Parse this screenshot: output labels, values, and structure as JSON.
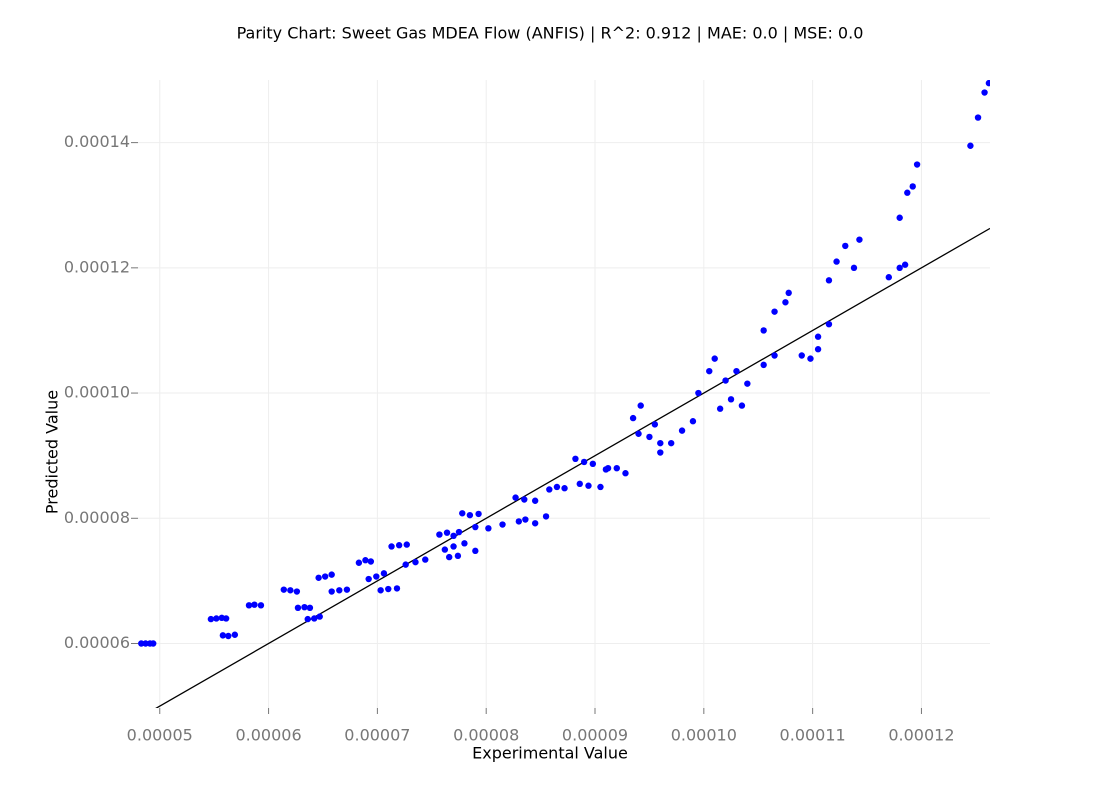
{
  "chart_data": {
    "type": "scatter",
    "title": "Parity Chart: Sweet Gas MDEA Flow (ANFIS) | R^2: 0.912 | MAE: 0.0 | MSE: 0.0",
    "xlabel": "Experimental Value",
    "ylabel": "Predicted Value",
    "xlim": [
      4.8e-05,
      0.0001263
    ],
    "ylim": [
      4.97e-05,
      0.00015
    ],
    "xticks": [
      5e-05,
      6e-05,
      7e-05,
      8e-05,
      9e-05,
      {
        "value": 0.0001,
        "label": "0.00010"
      },
      0.00011,
      0.00012
    ],
    "yticks": [
      6e-05,
      8e-05,
      {
        "value": 0.0001,
        "label": "0.00010"
      },
      0.00012,
      0.00014
    ],
    "grid": true,
    "parity_line": true,
    "series": [
      {
        "color": "#0000ff",
        "x": [
          4.83e-05,
          4.87e-05,
          4.91e-05,
          4.94e-05,
          5.47e-05,
          5.52e-05,
          5.57e-05,
          5.61e-05,
          5.58e-05,
          5.63e-05,
          5.69e-05,
          5.82e-05,
          5.87e-05,
          5.93e-05,
          6.14e-05,
          6.2e-05,
          6.26e-05,
          6.27e-05,
          6.33e-05,
          6.38e-05,
          6.36e-05,
          6.42e-05,
          6.47e-05,
          6.46e-05,
          6.52e-05,
          6.58e-05,
          6.58e-05,
          6.65e-05,
          6.72e-05,
          6.83e-05,
          6.89e-05,
          6.94e-05,
          6.92e-05,
          6.99e-05,
          7.06e-05,
          7.03e-05,
          7.1e-05,
          7.18e-05,
          7.13e-05,
          7.2e-05,
          7.27e-05,
          7.26e-05,
          7.35e-05,
          7.44e-05,
          7.57e-05,
          7.64e-05,
          7.7e-05,
          7.75e-05,
          7.62e-05,
          7.7e-05,
          7.8e-05,
          7.9e-05,
          7.66e-05,
          7.74e-05,
          7.78e-05,
          7.85e-05,
          7.93e-05,
          7.9e-05,
          8.02e-05,
          8.15e-05,
          8.3e-05,
          8.27e-05,
          8.35e-05,
          8.45e-05,
          8.36e-05,
          8.45e-05,
          8.55e-05,
          8.58e-05,
          8.65e-05,
          8.72e-05,
          8.82e-05,
          8.9e-05,
          8.98e-05,
          9.05e-05,
          9.12e-05,
          8.86e-05,
          8.94e-05,
          9.1e-05,
          9.2e-05,
          9.28e-05,
          9.35e-05,
          9.42e-05,
          9.4e-05,
          9.5e-05,
          9.55e-05,
          9.6e-05,
          9.6e-05,
          9.7e-05,
          9.8e-05,
          9.9e-05,
          9.95e-05,
          0.0001005,
          0.000101,
          0.0001015,
          0.0001025,
          0.0001035,
          0.000102,
          0.000103,
          0.000104,
          0.0001055,
          0.0001065,
          0.0001055,
          0.0001065,
          0.0001075,
          0.0001078,
          0.000109,
          0.0001098,
          0.0001105,
          0.0001105,
          0.0001115,
          0.0001115,
          0.0001122,
          0.000113,
          0.0001138,
          0.0001143,
          0.000117,
          0.000118,
          0.0001185,
          0.000118,
          0.0001187,
          0.0001192,
          0.0001196,
          0.0001245,
          0.0001252,
          0.0001258,
          0.0001262
        ],
        "values": [
          6e-05,
          6e-05,
          6e-05,
          6e-05,
          6.39e-05,
          6.4e-05,
          6.41e-05,
          6.4e-05,
          6.13e-05,
          6.12e-05,
          6.14e-05,
          6.61e-05,
          6.62e-05,
          6.61e-05,
          6.86e-05,
          6.85e-05,
          6.83e-05,
          6.57e-05,
          6.58e-05,
          6.57e-05,
          6.39e-05,
          6.4e-05,
          6.43e-05,
          7.05e-05,
          7.07e-05,
          7.1e-05,
          6.83e-05,
          6.85e-05,
          6.86e-05,
          7.29e-05,
          7.33e-05,
          7.31e-05,
          7.03e-05,
          7.07e-05,
          7.12e-05,
          6.85e-05,
          6.87e-05,
          6.88e-05,
          7.55e-05,
          7.57e-05,
          7.58e-05,
          7.26e-05,
          7.3e-05,
          7.34e-05,
          7.74e-05,
          7.77e-05,
          7.72e-05,
          7.78e-05,
          7.5e-05,
          7.55e-05,
          7.6e-05,
          7.48e-05,
          7.38e-05,
          7.4e-05,
          8.08e-05,
          8.05e-05,
          8.07e-05,
          7.86e-05,
          7.84e-05,
          7.9e-05,
          7.95e-05,
          8.33e-05,
          8.3e-05,
          8.28e-05,
          7.98e-05,
          7.92e-05,
          8.03e-05,
          8.46e-05,
          8.5e-05,
          8.48e-05,
          8.95e-05,
          8.9e-05,
          8.87e-05,
          8.5e-05,
          8.8e-05,
          8.55e-05,
          8.52e-05,
          8.78e-05,
          8.8e-05,
          8.72e-05,
          9.6e-05,
          9.8e-05,
          9.35e-05,
          9.3e-05,
          9.5e-05,
          9.2e-05,
          9.05e-05,
          9.2e-05,
          9.4e-05,
          9.55e-05,
          0.0001,
          0.0001035,
          0.0001055,
          9.75e-05,
          9.9e-05,
          9.8e-05,
          0.000102,
          0.0001035,
          0.0001015,
          0.0001045,
          0.000106,
          0.00011,
          0.000113,
          0.0001145,
          0.000116,
          0.000106,
          0.0001055,
          0.000107,
          0.000109,
          0.000111,
          0.000118,
          0.000121,
          0.0001235,
          0.00012,
          0.0001245,
          0.0001185,
          0.00012,
          0.0001205,
          0.000128,
          0.000132,
          0.000133,
          0.0001365,
          0.0001395,
          0.000144,
          0.000148,
          0.0001495
        ]
      }
    ]
  }
}
